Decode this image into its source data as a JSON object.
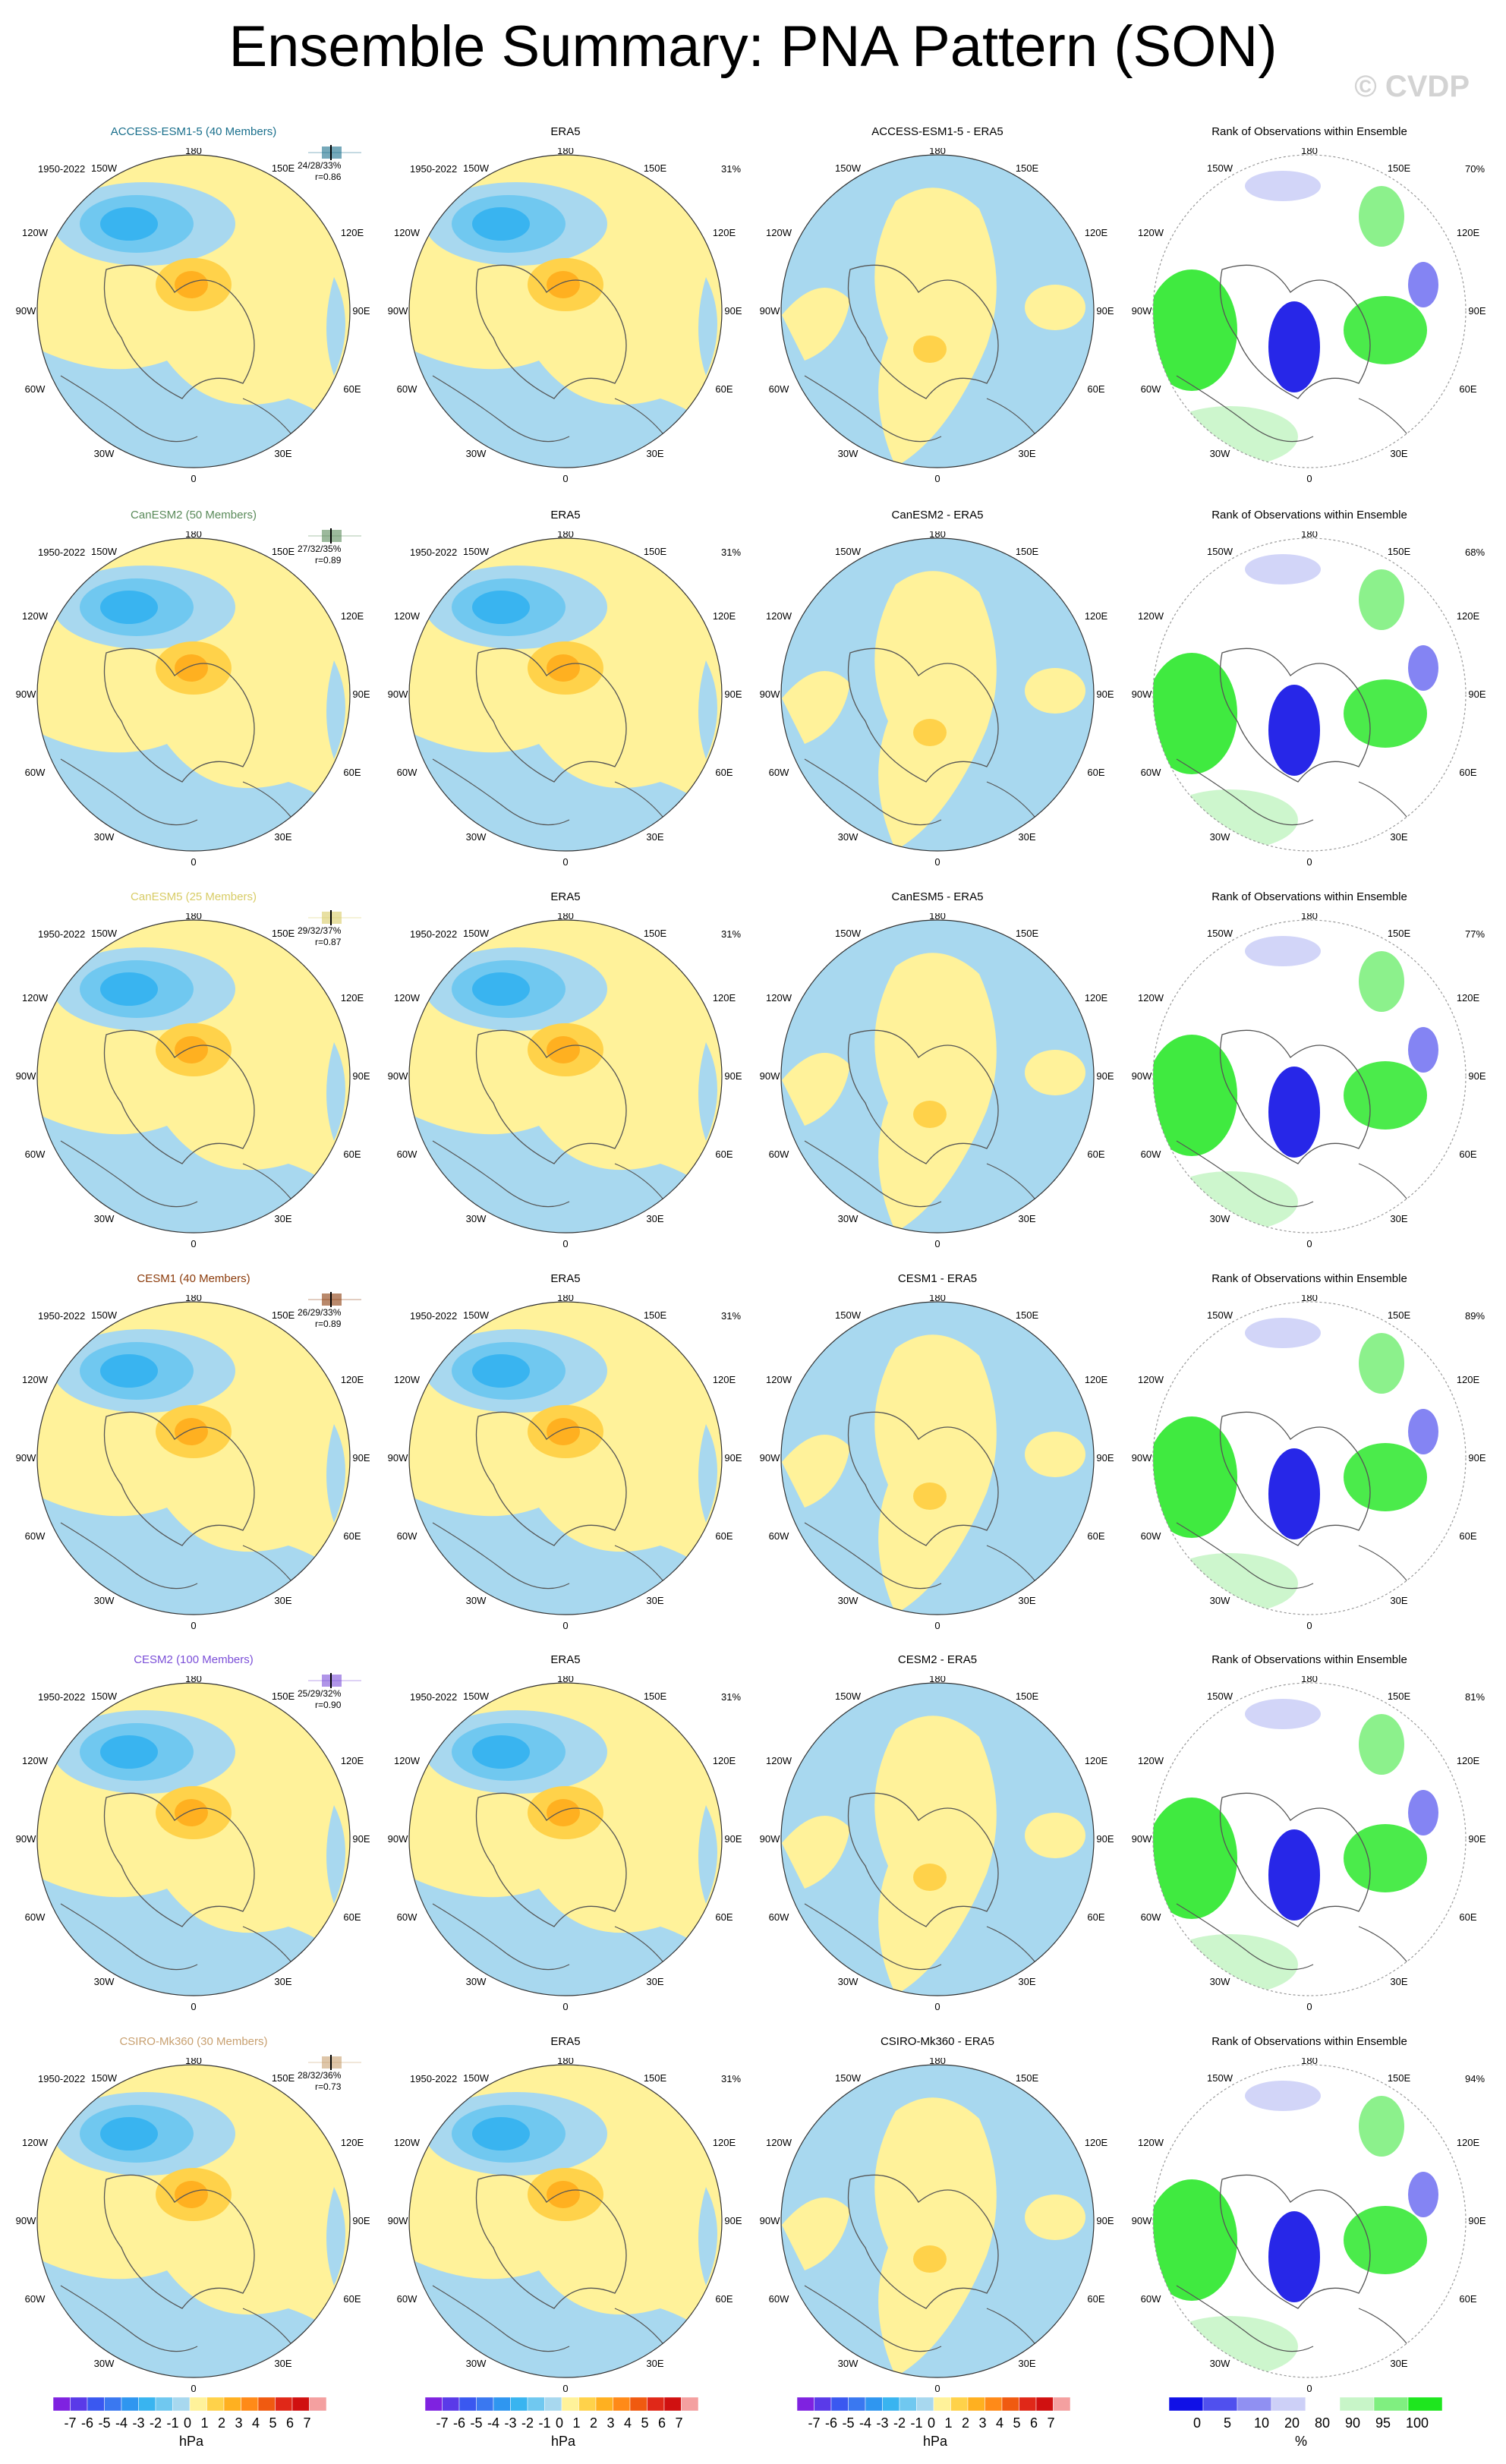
{
  "title": "Ensemble Summary: PNA Pattern (SON)",
  "watermark": "© CVDP",
  "rows": [
    {
      "model": "ACCESS-ESM1-5 (40 Members)",
      "color": "#1a6f8c",
      "stats": "24/28/33%",
      "r": "r=0.86",
      "diff": "ACCESS-ESM1-5 - ERA5",
      "pct_era": "31%",
      "pct_rank": "70%"
    },
    {
      "model": "CanESM2 (50 Members)",
      "color": "#5a8a5a",
      "stats": "27/32/35%",
      "r": "r=0.89",
      "diff": "CanESM2 - ERA5",
      "pct_era": "31%",
      "pct_rank": "68%"
    },
    {
      "model": "CanESM5 (25 Members)",
      "color": "#d8cc66",
      "stats": "29/32/37%",
      "r": "r=0.87",
      "diff": "CanESM5 - ERA5",
      "pct_era": "31%",
      "pct_rank": "77%"
    },
    {
      "model": "CESM1 (40 Members)",
      "color": "#8b3a0a",
      "stats": "26/29/33%",
      "r": "r=0.89",
      "diff": "CESM1 - ERA5",
      "pct_era": "31%",
      "pct_rank": "89%"
    },
    {
      "model": "CESM2 (100 Members)",
      "color": "#7b4fd8",
      "stats": "25/29/32%",
      "r": "r=0.90",
      "diff": "CESM2 - ERA5",
      "pct_era": "31%",
      "pct_rank": "81%"
    },
    {
      "model": "CSIRO-Mk360 (30 Members)",
      "color": "#c8a070",
      "stats": "28/32/36%",
      "r": "r=0.73",
      "diff": "CSIRO-Mk360 - ERA5",
      "pct_era": "31%",
      "pct_rank": "94%"
    }
  ],
  "era_title": "ERA5",
  "rank_title": "Rank of Observations within Ensemble",
  "years": "1950-2022",
  "lon_labels": {
    "top": "180",
    "l150": "150W",
    "r150": "150E",
    "l120": "120W",
    "r120": "120E",
    "l90": "90W",
    "r90": "90E",
    "l60": "60W",
    "r60": "60E",
    "l30": "30W",
    "r30": "30E",
    "bottom": "0"
  },
  "colorbar_pattern": {
    "labels": [
      "-7",
      "-6",
      "-5",
      "-4",
      "-3",
      "-2",
      "-1",
      "0",
      "1",
      "2",
      "3",
      "4",
      "5",
      "6",
      "7"
    ],
    "colors": [
      "#7f22e0",
      "#5a3ae8",
      "#3a58f0",
      "#3a78f0",
      "#2f96f0",
      "#39b4f0",
      "#70c8f0",
      "#a8d8ef",
      "#fff29a",
      "#ffd24a",
      "#ffb020",
      "#ff8a18",
      "#f05a10",
      "#e02818",
      "#d01010",
      "#f4a0a0"
    ],
    "unit": "hPa"
  },
  "colorbar_rank": {
    "labels": [
      "0",
      "5",
      "10",
      "20",
      "80",
      "90",
      "95",
      "100"
    ],
    "colors": [
      "#1010e6",
      "#5050ee",
      "#9090f2",
      "#cdd0f7",
      "#ffffff",
      "#c8f5c8",
      "#80ef80",
      "#1ee61e"
    ],
    "unit": "%"
  }
}
